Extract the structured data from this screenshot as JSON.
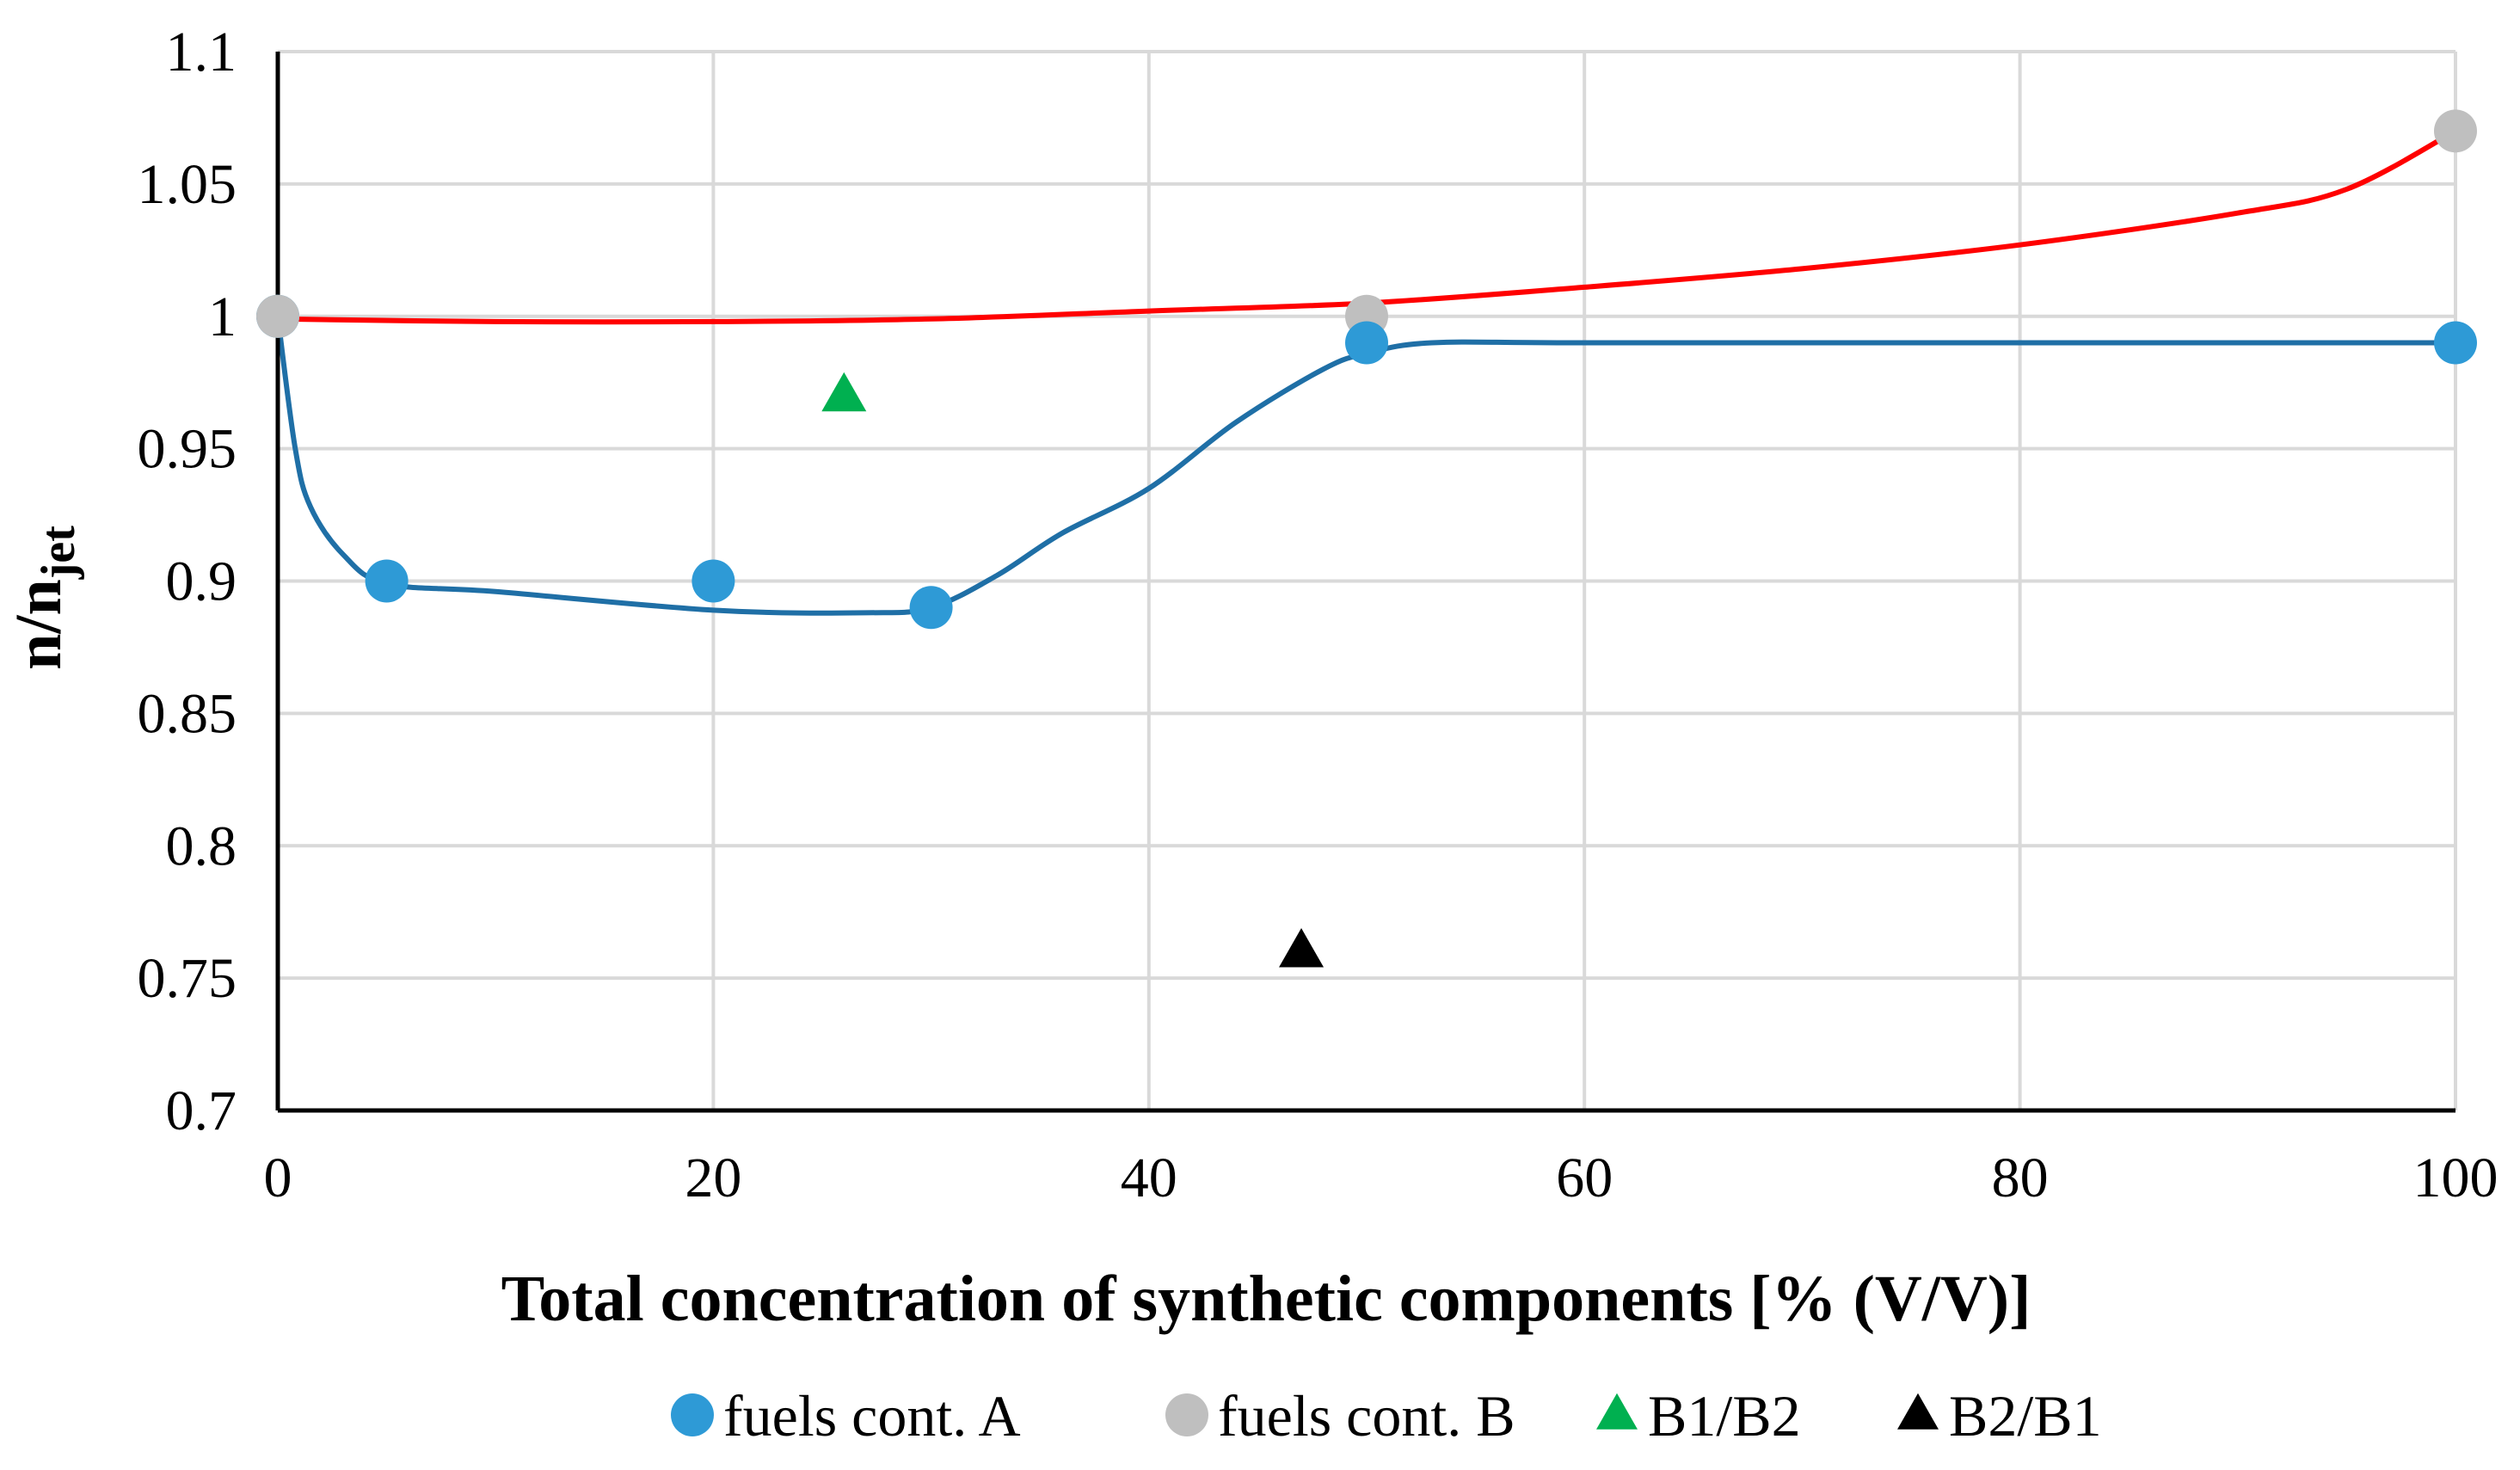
{
  "chart_data": {
    "type": "scatter",
    "title": "",
    "xlabel": "Total concentration of synthetic components [% (V/V)]",
    "ylabel": {
      "main": "n/n",
      "subscript": "jet"
    },
    "xlim": [
      0,
      100
    ],
    "ylim": [
      0.7,
      1.1
    ],
    "xticks": [
      0,
      20,
      40,
      60,
      80,
      100
    ],
    "yticks": [
      0.7,
      0.75,
      0.8,
      0.85,
      0.9,
      0.95,
      1,
      1.05,
      1.1
    ],
    "xtick_labels": [
      "0",
      "20",
      "40",
      "60",
      "80",
      "100"
    ],
    "ytick_labels": [
      "0.7",
      "0.75",
      "0.8",
      "0.85",
      "0.9",
      "0.95",
      "1",
      "1.05",
      "1.1"
    ],
    "grid": true,
    "legend_position": "bottom",
    "series": [
      {
        "name": "fuels cont. A",
        "marker": "circle",
        "color": "#2E9AD6",
        "x": [
          0,
          5,
          20,
          30,
          50,
          100
        ],
        "y": [
          1.0,
          0.9,
          0.9,
          0.89,
          0.99,
          0.99
        ],
        "trendline": {
          "color": "#1F6FA6",
          "x": [
            0,
            0.8,
            1.5,
            3,
            5,
            10,
            20,
            27,
            30,
            33,
            36,
            40,
            44,
            48,
            50,
            53,
            60,
            80,
            100
          ],
          "y": [
            1.0,
            0.95,
            0.928,
            0.91,
            0.899,
            0.896,
            0.889,
            0.888,
            0.89,
            0.902,
            0.918,
            0.935,
            0.96,
            0.98,
            0.986,
            0.99,
            0.99,
            0.99,
            0.99
          ]
        }
      },
      {
        "name": "fuels cont. B",
        "marker": "circle",
        "color": "#BFBFBF",
        "x": [
          0,
          50,
          100
        ],
        "y": [
          1.0,
          1.0,
          1.07
        ],
        "trendline": {
          "color": "#FF0000",
          "x": [
            0,
            10,
            20,
            30,
            40,
            50,
            60,
            70,
            80,
            90,
            95,
            100
          ],
          "y": [
            0.999,
            0.998,
            0.998,
            0.999,
            1.002,
            1.005,
            1.011,
            1.018,
            1.027,
            1.039,
            1.048,
            1.07
          ]
        }
      },
      {
        "name": "B1/B2",
        "marker": "triangle",
        "color": "#00B050",
        "x": [
          26
        ],
        "y": [
          0.97
        ]
      },
      {
        "name": "B2/B1",
        "marker": "triangle",
        "color": "#000000",
        "x": [
          47
        ],
        "y": [
          0.76
        ]
      }
    ]
  }
}
